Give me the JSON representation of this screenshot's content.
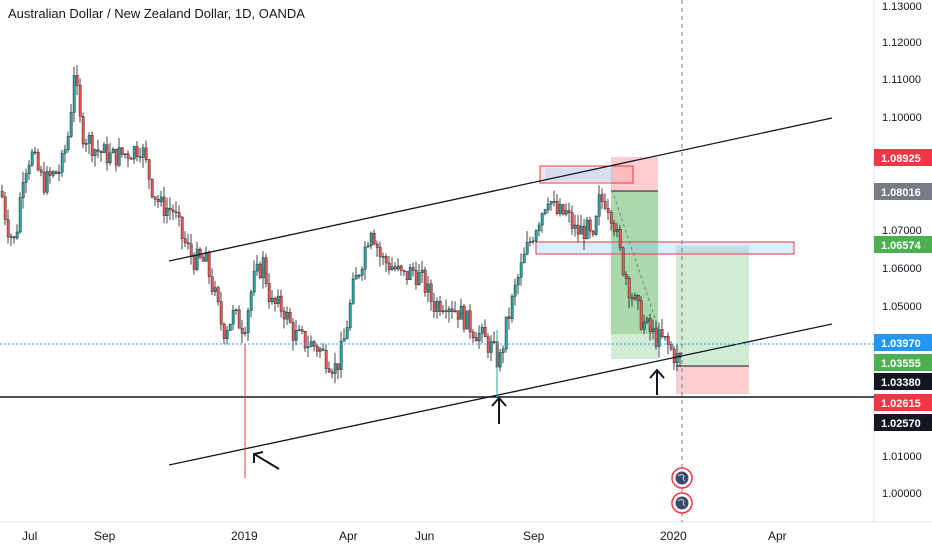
{
  "header": {
    "title": "Australian Dollar / New Zealand Dollar, 1D, OANDA"
  },
  "chart_data": {
    "type": "candlestick",
    "title": "Australian Dollar / New Zealand Dollar, 1D, OANDA",
    "y_ticks": [
      "1.13000",
      "1.12000",
      "1.11000",
      "1.10000",
      "1.07000",
      "1.06000",
      "1.05000",
      "1.01000",
      "1.00000"
    ],
    "x_ticks": [
      "Jul",
      "Sep",
      "2019",
      "Apr",
      "Jun",
      "Sep",
      "2020",
      "Apr"
    ],
    "ylim": [
      0.9955,
      1.1357
    ],
    "price_tags": [
      {
        "label": "1.08925",
        "color": "#f23645"
      },
      {
        "label": "1.08016",
        "color": "#787b86"
      },
      {
        "label": "1.06574",
        "color": "#4caf50"
      },
      {
        "label": "1.03970",
        "color": "#2196f3"
      },
      {
        "label": "1.03555",
        "color": "#4caf50"
      },
      {
        "label": "1.03380",
        "color": "#131722"
      },
      {
        "label": "1.02615",
        "color": "#f23645"
      },
      {
        "label": "1.02570",
        "color": "#131722"
      }
    ],
    "colors": {
      "up": "#26a69a",
      "down": "#ef5350",
      "outline": "#131722",
      "channel": "#131722"
    }
  }
}
